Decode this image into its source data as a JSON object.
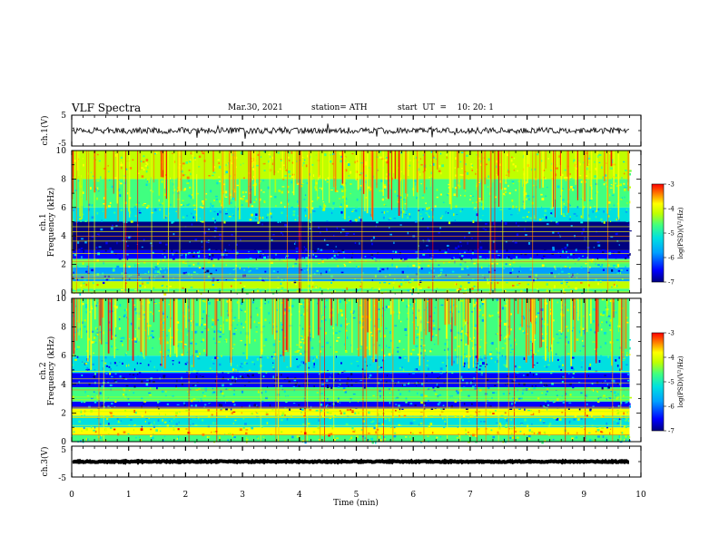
{
  "header": {
    "title": "VLF Spectra",
    "date": "Mar.30, 2021",
    "station": "station= ATH",
    "start": "start  UT  =    10: 20: 1"
  },
  "chart_data": [
    {
      "type": "line",
      "panel": "ch1-waveform",
      "ylabel": "ch.1(V)",
      "ylim": [
        -5,
        5
      ],
      "y_ticks": [
        "5",
        "-5"
      ],
      "baseline": 0,
      "noise_amplitude": 1,
      "x_range": [
        0,
        9.8
      ]
    },
    {
      "type": "heatmap",
      "panel": "ch1-spectrogram",
      "ylabel": [
        "ch.1",
        "Frequency  (kHz)"
      ],
      "ylim": [
        0,
        10
      ],
      "y_ticks": [
        "0",
        "2",
        "4",
        "6",
        "8",
        "10"
      ],
      "x_range": [
        0,
        9.8
      ],
      "bands_khz": [
        {
          "from": 0,
          "to": 0.3,
          "level": -4.8
        },
        {
          "from": 0.3,
          "to": 0.8,
          "level": -4.5
        },
        {
          "from": 0.8,
          "to": 1.8,
          "level": -5.7
        },
        {
          "from": 1.8,
          "to": 2.4,
          "level": -5.0
        },
        {
          "from": 2.4,
          "to": 3.0,
          "level": -6.2
        },
        {
          "from": 3.0,
          "to": 5.0,
          "level": -6.8
        },
        {
          "from": 5.0,
          "to": 6.0,
          "level": -5.3
        },
        {
          "from": 6.0,
          "to": 8.0,
          "level": -4.8
        },
        {
          "from": 8.0,
          "to": 10.0,
          "level": -4.4
        }
      ],
      "colorbar": {
        "label": "log(PSD)(V²/Hz)",
        "range": [
          -7,
          -3
        ],
        "ticks": [
          "-3",
          "-4",
          "-5",
          "-6",
          "-7"
        ]
      }
    },
    {
      "type": "heatmap",
      "panel": "ch2-spectrogram",
      "ylabel": [
        "ch.2",
        "Frequency  (kHz)"
      ],
      "ylim": [
        0,
        10
      ],
      "y_ticks": [
        "0",
        "2",
        "4",
        "6",
        "8",
        "10"
      ],
      "x_range": [
        0,
        9.8
      ],
      "bands_khz": [
        {
          "from": 0,
          "to": 0.5,
          "level": -5.0
        },
        {
          "from": 0.5,
          "to": 1.0,
          "level": -4.3
        },
        {
          "from": 1.0,
          "to": 1.8,
          "level": -5.3
        },
        {
          "from": 1.8,
          "to": 2.3,
          "level": -4.3
        },
        {
          "from": 2.3,
          "to": 2.8,
          "level": -6.3
        },
        {
          "from": 2.8,
          "to": 3.8,
          "level": -5.2
        },
        {
          "from": 3.8,
          "to": 4.8,
          "level": -6.4
        },
        {
          "from": 4.8,
          "to": 6.0,
          "level": -5.6
        },
        {
          "from": 6.0,
          "to": 10.0,
          "level": -5.0
        }
      ],
      "colorbar": {
        "label": "log(PSD)(V²/Hz)",
        "range": [
          -7,
          -3
        ],
        "ticks": [
          "-3",
          "-4",
          "-5",
          "-6",
          "-7"
        ]
      }
    },
    {
      "type": "line",
      "panel": "ch3-waveform",
      "ylabel": "ch.3(V)",
      "ylim": [
        -5,
        5
      ],
      "y_ticks": [
        "5",
        "-5"
      ],
      "baseline": 0,
      "noise_amplitude": 0.2,
      "x_range": [
        0,
        9.8
      ]
    }
  ],
  "x_axis": {
    "label": "Time  (min)",
    "range": [
      0,
      10
    ],
    "ticks": [
      "0",
      "1",
      "2",
      "3",
      "4",
      "5",
      "6",
      "7",
      "8",
      "9",
      "10"
    ]
  },
  "colors": {
    "scale": [
      "#000080",
      "#0000ff",
      "#00a0ff",
      "#00e0e0",
      "#40ff80",
      "#c0ff00",
      "#ffff00",
      "#ff8000",
      "#ff0000"
    ],
    "axis": "#000000"
  }
}
